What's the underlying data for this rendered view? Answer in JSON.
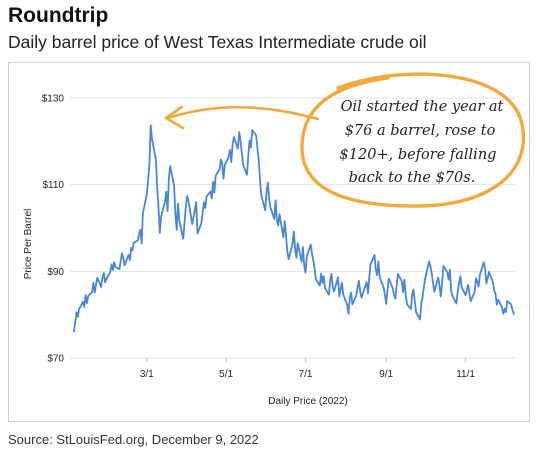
{
  "header": {
    "title": "Roundtrip",
    "subtitle": "Daily barrel price of West Texas Intermediate crude oil"
  },
  "footer": {
    "source": "Source: StLouisFed.org, December 9, 2022"
  },
  "colors": {
    "line": "#4a86d8",
    "annotation": "#f2a93b",
    "grid": "#e3e3e3"
  },
  "chart_data": {
    "type": "line",
    "xlabel": "Daily Price (2022)",
    "ylabel": "Price Per Barrel",
    "ylim": [
      70,
      135
    ],
    "yticks": [
      70,
      90,
      110,
      130
    ],
    "ytick_labels": [
      "$70",
      "$90",
      "$110",
      "$130"
    ],
    "xtick_labels": [
      "3/1",
      "5/1",
      "7/1",
      "9/1",
      "11/1"
    ],
    "xtick_positions": [
      59,
      120,
      181,
      243,
      304
    ],
    "xlim": [
      0,
      342
    ],
    "grid": true,
    "annotation": {
      "lines": [
        "Oil started the year at",
        "$76 a barrel, rose to",
        "$120+, before falling",
        "back to the $70s."
      ]
    },
    "series": [
      {
        "x": [
          3,
          4,
          5,
          6,
          7,
          10,
          11,
          12,
          13,
          14,
          17,
          18,
          19,
          20,
          21,
          24,
          25,
          26,
          27,
          28,
          31,
          32,
          33,
          34,
          35,
          38,
          39,
          40,
          41,
          42,
          45,
          46,
          47,
          48,
          49,
          52,
          53,
          54,
          55,
          56,
          59,
          60,
          61,
          62,
          63,
          66,
          67,
          68,
          69,
          70,
          73,
          74,
          75,
          76,
          77,
          80,
          81,
          82,
          83,
          84,
          87,
          88,
          89,
          90,
          91,
          94,
          95,
          96,
          97,
          98,
          101,
          102,
          103,
          104,
          105,
          108,
          109,
          110,
          111,
          112,
          115,
          116,
          117,
          118,
          119,
          122,
          123,
          124,
          125,
          126,
          129,
          130,
          131,
          132,
          133,
          136,
          137,
          138,
          139,
          140,
          143,
          144,
          145,
          146,
          147,
          150,
          151,
          152,
          153,
          154,
          157,
          158,
          159,
          160,
          161,
          164,
          165,
          166,
          167,
          168,
          171,
          172,
          173,
          174,
          175,
          178,
          179,
          180,
          181,
          182,
          185,
          186,
          187,
          188,
          189,
          192,
          193,
          194,
          195,
          196,
          199,
          200,
          201,
          202,
          203,
          206,
          207,
          208,
          209,
          210,
          213,
          214,
          215,
          216,
          217,
          220,
          221,
          222,
          223,
          224,
          227,
          228,
          229,
          230,
          231,
          234,
          235,
          236,
          237,
          238,
          241,
          242,
          243,
          244,
          245,
          248,
          249,
          250,
          251,
          252,
          255,
          256,
          257,
          258,
          259,
          262,
          263,
          264,
          265,
          266,
          269,
          270,
          271,
          272,
          273,
          276,
          277,
          278,
          279,
          280,
          283,
          284,
          285,
          286,
          287,
          290,
          291,
          292,
          293,
          294,
          297,
          298,
          299,
          300,
          301,
          304,
          305,
          306,
          307,
          308,
          311,
          312,
          313,
          314,
          315,
          318,
          319,
          320,
          321,
          322,
          325,
          326,
          327,
          328,
          329,
          332,
          333,
          334,
          335,
          336,
          339,
          340,
          341
        ],
        "values": [
          76.1,
          78.2,
          80.6,
          79.5,
          81.3,
          83.0,
          81.8,
          84.5,
          82.6,
          84.3,
          85.2,
          87.4,
          85.1,
          86.9,
          88.5,
          86.4,
          88.7,
          89.6,
          87.5,
          88.2,
          89.9,
          91.6,
          90.3,
          92.1,
          91.0,
          90.5,
          92.4,
          94.2,
          93.1,
          91.4,
          93.8,
          92.6,
          95.4,
          94.8,
          96.6,
          97.1,
          98.4,
          99.6,
          96.4,
          103.4,
          107.8,
          110.9,
          114.6,
          123.7,
          120.5,
          115.8,
          109.3,
          104.8,
          98.9,
          102.6,
          106.1,
          108.4,
          103.9,
          111.5,
          114.3,
          109.7,
          103.2,
          99.6,
          105.6,
          101.8,
          97.5,
          101.2,
          104.8,
          107.4,
          106.3,
          100.9,
          102.5,
          104.2,
          106.0,
          98.7,
          101.1,
          103.7,
          105.9,
          104.6,
          107.3,
          108.4,
          106.8,
          110.7,
          108.2,
          112.1,
          113.5,
          115.8,
          114.9,
          111.4,
          114.6,
          116.5,
          118.0,
          115.2,
          119.4,
          121.0,
          118.3,
          122.1,
          120.1,
          117.4,
          114.6,
          112.3,
          116.7,
          120.2,
          118.6,
          122.6,
          121.4,
          118.5,
          115.8,
          111.2,
          107.6,
          104.1,
          108.3,
          110.5,
          106.9,
          104.7,
          102.1,
          106.4,
          101.8,
          100.6,
          103.2,
          97.8,
          101.6,
          98.4,
          94.6,
          92.8,
          96.4,
          99.2,
          95.3,
          93.1,
          96.5,
          92.2,
          95.6,
          91.3,
          89.7,
          93.4,
          96.2,
          94.1,
          92.5,
          90.6,
          88.2,
          86.7,
          89.5,
          87.3,
          88.9,
          86.1,
          84.6,
          87.9,
          89.4,
          86.3,
          85.4,
          88.6,
          84.2,
          85.9,
          87.4,
          84.7,
          82.3,
          80.2,
          83.9,
          85.1,
          82.4,
          84.5,
          86.3,
          87.8,
          85.4,
          83.9,
          86.7,
          87.5,
          84.9,
          88.6,
          91.7,
          93.8,
          90.4,
          89.1,
          92.3,
          88.7,
          86.3,
          84.6,
          82.5,
          85.7,
          88.3,
          86.1,
          84.6,
          83.7,
          86.5,
          89.4,
          87.7,
          85.2,
          88.1,
          84.6,
          82.4,
          81.3,
          84.7,
          85.8,
          83.1,
          80.6,
          78.9,
          82.7,
          84.1,
          86.5,
          88.4,
          92.3,
          91.2,
          89.6,
          87.4,
          85.3,
          88.6,
          86.7,
          84.2,
          87.3,
          91.2,
          89.8,
          88.1,
          90.4,
          85.5,
          84.3,
          82.6,
          85.4,
          87.2,
          88.9,
          86.3,
          84.5,
          85.8,
          86.9,
          84.7,
          83.1,
          85.3,
          88.4,
          87.6,
          86.5,
          89.2,
          92.1,
          90.6,
          87.2,
          88.4,
          89.9,
          87.5,
          85.6,
          84.8,
          82.3,
          83.5,
          81.7,
          80.2,
          81.4,
          80.6,
          83.1,
          82.4,
          81.1,
          80.2
        ]
      }
    ]
  }
}
